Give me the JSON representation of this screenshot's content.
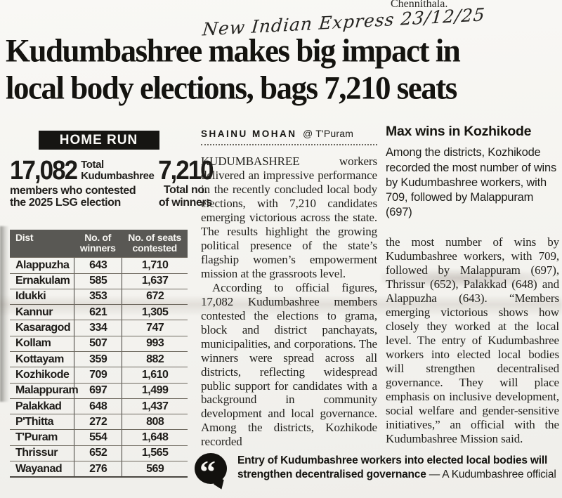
{
  "page": {
    "top_cut_text": "Chennithala.",
    "handwritten_note": "New Indian Express 23/12/25"
  },
  "headline": {
    "line1": "Kudumbashree makes big impact in",
    "line2": "local body elections, bags 7,210 seats"
  },
  "byline": {
    "name": "SHAINU MOHAN",
    "location": "@ T'Puram"
  },
  "infographic": {
    "title": "HOME RUN",
    "stat_left": {
      "value": "17,082",
      "side_label": "Total Kudumbashree",
      "below_label": "members who contested the 2025 LSG election"
    },
    "stat_right": {
      "value": "7,210",
      "label": "Total no. of winners"
    },
    "table": {
      "columns": [
        "Dist",
        "No. of winners",
        "No. of seats contested"
      ],
      "rows": [
        [
          "Alappuzha",
          "643",
          "1,710"
        ],
        [
          "Ernakulam",
          "585",
          "1,637"
        ],
        [
          "Idukki",
          "353",
          "672"
        ],
        [
          "Kannur",
          "621",
          "1,305"
        ],
        [
          "Kasaragod",
          "334",
          "747"
        ],
        [
          "Kollam",
          "507",
          "993"
        ],
        [
          "Kottayam",
          "359",
          "882"
        ],
        [
          "Kozhikode",
          "709",
          "1,610"
        ],
        [
          "Malappuram",
          "697",
          "1,499"
        ],
        [
          "Palakkad",
          "648",
          "1,437"
        ],
        [
          "P'Thitta",
          "272",
          "808"
        ],
        [
          "T'Puram",
          "554",
          "1,648"
        ],
        [
          "Thrissur",
          "652",
          "1,565"
        ],
        [
          "Wayanad",
          "276",
          "569"
        ]
      ]
    }
  },
  "article": {
    "para1": "KUDUMBASHREE workers delivered an impressive performance in the recently concluded local body elections, with 7,210 candidates emerging victorious across the state. The results highlight the growing political presence of the state’s flagship women’s empowerment mission at the grassroots level.",
    "para2": "According to official figures, 17,082 Kudumbashree members contested the elections to grama, block and district panchayats, municipalities, and corporations. The winners were spread across all districts, reflecting widespread public support for candidates with a background in community development and local governance. Among the districts, Kozhikode recorded",
    "para3": "the most number of wins by Kudumbashree workers, with 709, followed by Malappuram (697), Thrissur (652), Palakkad (648) and Alappuzha (643). “Members emerging victorious shows how closely they worked at the local level. The entry of Kudumbashree workers into elected local bodies will strengthen decentralised governance. They will place emphasis on inclusive development, social welfare and gender-sensitive initiatives,” an official with the Kudumbashree Mission said."
  },
  "sidebar": {
    "heading": "Max wins in Kozhikode",
    "deck": "Among the districts, Kozhikode recorded the most number of wins by Kudumbashree workers, with 709, followed by Malappuram (697)"
  },
  "pullquote": {
    "glyph": "“",
    "text": "Entry of Kudumbashree workers into elected local bodies will strengthen decentralised governance",
    "attribution": "— A Kudumbashree official"
  },
  "colors": {
    "paper": "#f6f5f1",
    "ink": "#1b1a18",
    "bar_black": "#161512",
    "table_header_gray": "#595854"
  }
}
